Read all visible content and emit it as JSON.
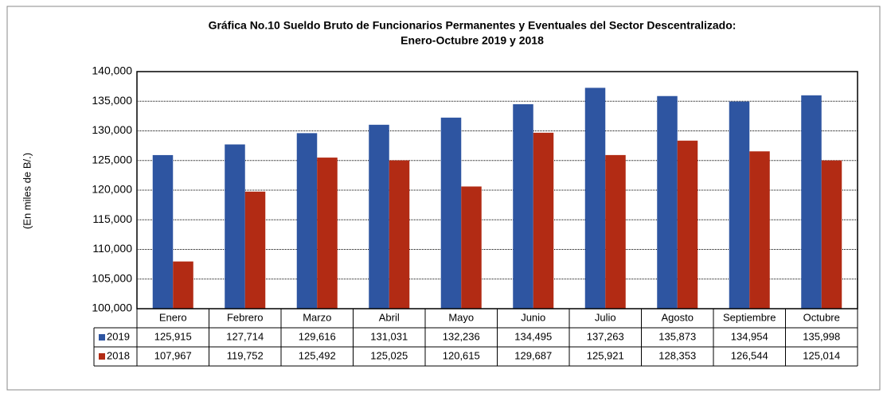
{
  "chart_data": {
    "type": "bar",
    "title": [
      "Gráfica No.10 Sueldo Bruto de Funcionarios Permanentes y Eventuales del Sector Descentralizado:",
      "Enero-Octubre 2019 y 2018"
    ],
    "y_label": "(En miles de B/.)",
    "categories": [
      "Enero",
      "Febrero",
      "Marzo",
      "Abril",
      "Mayo",
      "Junio",
      "Julio",
      "Agosto",
      "Septiembre",
      "Octubre"
    ],
    "series": [
      {
        "name": "2019",
        "color": "#2e55a1",
        "values": [
          125915,
          127714,
          129616,
          131031,
          132236,
          134495,
          137263,
          135873,
          134954,
          135998
        ],
        "value_labels": [
          "125,915",
          "127,714",
          "129,616",
          "131,031",
          "132,236",
          "134,495",
          "137,263",
          "135,873",
          "134,954",
          "135,998"
        ]
      },
      {
        "name": "2018",
        "color": "#b22b14",
        "values": [
          107967,
          119752,
          125492,
          125025,
          120615,
          129687,
          125921,
          128353,
          126544,
          125014
        ],
        "value_labels": [
          "107,967",
          "119,752",
          "125,492",
          "125,025",
          "120,615",
          "129,687",
          "125,921",
          "128,353",
          "126,544",
          "125,014"
        ]
      }
    ],
    "ylim": [
      100000,
      140000
    ],
    "yticks": [
      {
        "value": 100000,
        "label": "100,000"
      },
      {
        "value": 105000,
        "label": "105,000"
      },
      {
        "value": 110000,
        "label": "110,000"
      },
      {
        "value": 115000,
        "label": "115,000"
      },
      {
        "value": 120000,
        "label": "120,000"
      },
      {
        "value": 125000,
        "label": "125,000"
      },
      {
        "value": 130000,
        "label": "130,000"
      },
      {
        "value": 135000,
        "label": "135,000"
      },
      {
        "value": 140000,
        "label": "140,000"
      }
    ],
    "grid": true
  }
}
